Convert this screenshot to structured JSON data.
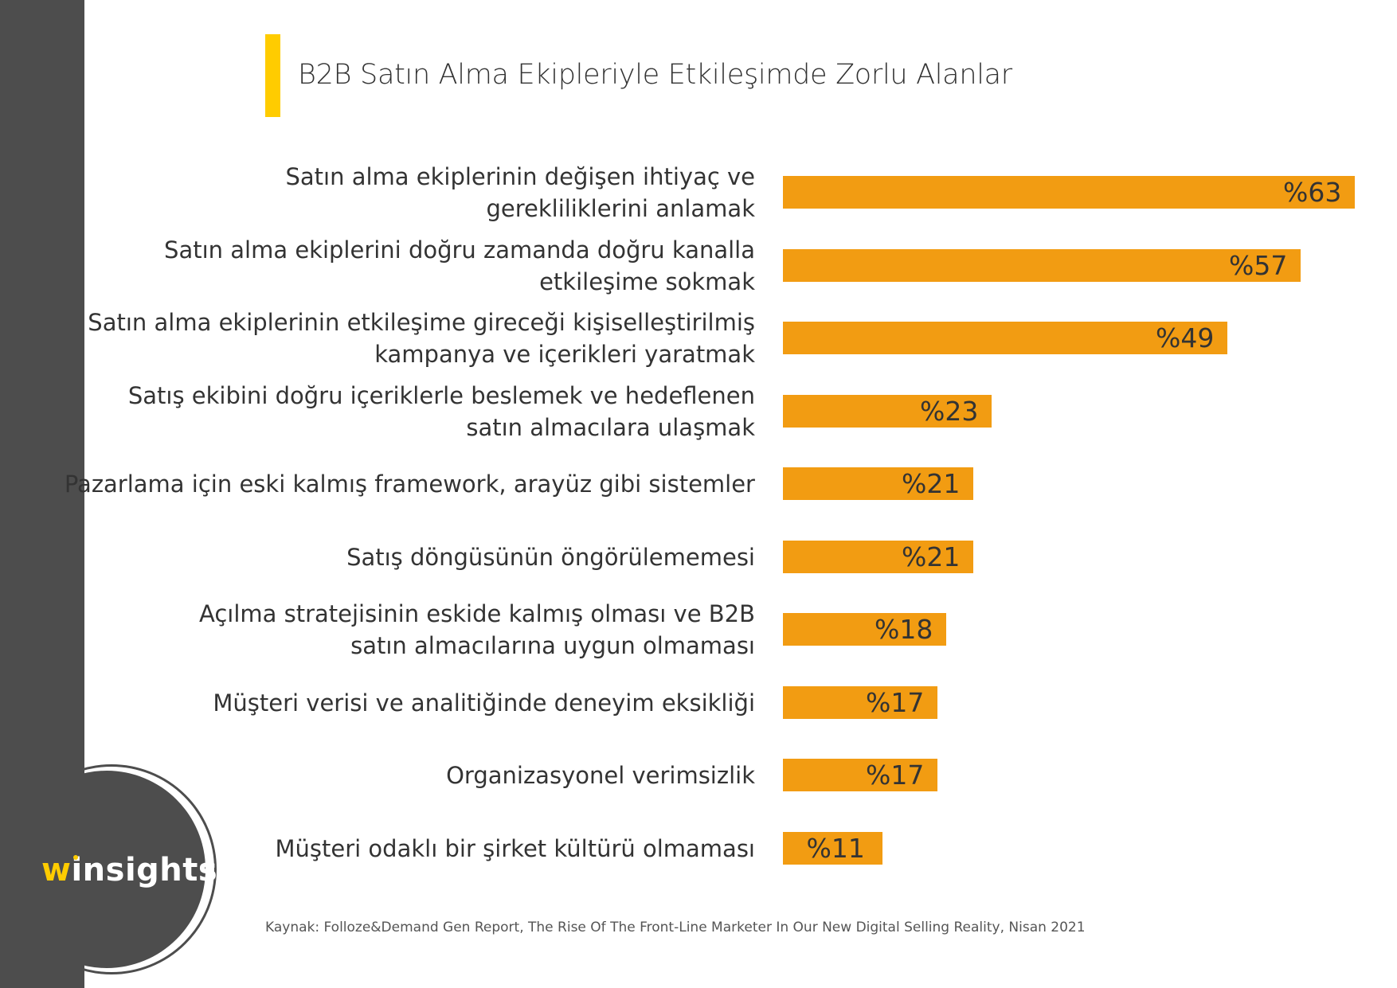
{
  "title": "B2B Satın Alma Ekipleriyle Etkileşimde Zorlu Alanlar",
  "logo": {
    "w": "w",
    "text": "insights"
  },
  "source": "Kaynak: Folloze&Demand Gen Report, The Rise Of The Front-Line Marketer In Our New Digital Selling Reality, Nisan 2021",
  "colors": {
    "bar": "#f29c12",
    "accent": "#ffcc00",
    "sidebar": "#4d4d4d"
  },
  "chart_data": {
    "type": "bar",
    "orientation": "horizontal",
    "categories": [
      [
        "Satın alma ekiplerinin değişen ihtiyaç ve",
        "gerekliliklerini anlamak"
      ],
      [
        "Satın alma ekiplerini doğru zamanda doğru kanalla",
        "etkileşime sokmak"
      ],
      [
        "Satın alma ekiplerinin etkileşime gireceği kişiselleştirilmiş",
        "kampanya ve içerikleri yaratmak"
      ],
      [
        "Satış ekibini doğru içeriklerle beslemek ve hedeflenen",
        "satın almacılara ulaşmak"
      ],
      [
        "Pazarlama için eski kalmış framework, arayüz gibi sistemler"
      ],
      [
        "Satış döngüsünün öngörülememesi"
      ],
      [
        "Açılma stratejisinin eskide kalmış olması ve B2B",
        "satın almacılarına uygun olmaması"
      ],
      [
        "Müşteri verisi ve analitiğinde deneyim eksikliği"
      ],
      [
        "Organizasyonel verimsizlik"
      ],
      [
        "Müşteri odaklı bir şirket kültürü olmaması"
      ]
    ],
    "values": [
      63,
      57,
      49,
      23,
      21,
      21,
      18,
      17,
      17,
      11
    ],
    "value_labels": [
      "%63",
      "%57",
      "%49",
      "%23",
      "%21",
      "%21",
      "%18",
      "%17",
      "%17",
      "%11"
    ],
    "xlim": [
      0,
      63
    ]
  }
}
